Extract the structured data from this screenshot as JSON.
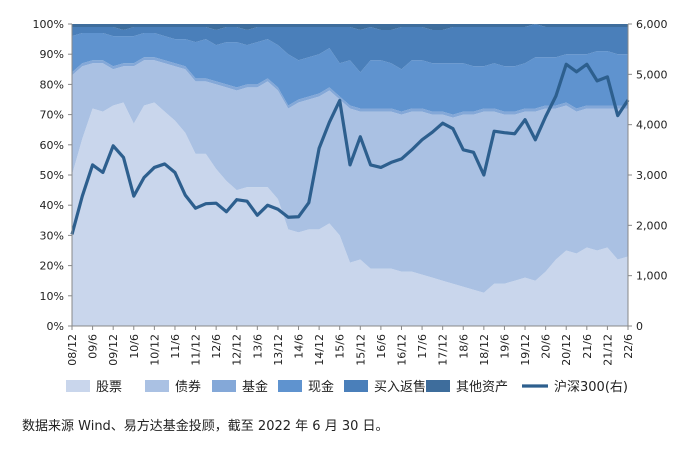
{
  "source_note": "数据来源 Wind、易方达基金投顾，截至 2022 年 6 月 30 日。",
  "chart_data": {
    "type": "area",
    "stacked_percent": true,
    "legend_position": "bottom",
    "grid": false,
    "y_left": {
      "min": 0,
      "max": 100,
      "step": 10,
      "unit": "%"
    },
    "y_right": {
      "min": 0,
      "max": 6000,
      "step": 1000
    },
    "x_tick_labels": [
      "08/12",
      "09/6",
      "09/12",
      "10/6",
      "10/12",
      "11/6",
      "11/12",
      "12/6",
      "12/12",
      "13/6",
      "13/12",
      "14/6",
      "14/12",
      "15/6",
      "15/12",
      "16/6",
      "16/12",
      "17/6",
      "17/12",
      "18/6",
      "18/12",
      "19/6",
      "19/12",
      "20/6",
      "20/12",
      "21/6",
      "21/12",
      "22/6"
    ],
    "x_tick_indices": [
      0,
      2,
      4,
      6,
      8,
      10,
      12,
      14,
      16,
      18,
      20,
      22,
      24,
      26,
      28,
      30,
      32,
      34,
      36,
      38,
      40,
      42,
      44,
      46,
      48,
      50,
      52,
      54
    ],
    "x": [
      "08/12",
      "09/3",
      "09/6",
      "09/9",
      "09/12",
      "10/3",
      "10/6",
      "10/9",
      "10/12",
      "11/3",
      "11/6",
      "11/9",
      "11/12",
      "12/3",
      "12/6",
      "12/9",
      "12/12",
      "13/3",
      "13/6",
      "13/9",
      "13/12",
      "14/3",
      "14/6",
      "14/9",
      "14/12",
      "15/3",
      "15/6",
      "15/9",
      "15/12",
      "16/3",
      "16/6",
      "16/9",
      "16/12",
      "17/3",
      "17/6",
      "17/9",
      "17/12",
      "18/3",
      "18/6",
      "18/9",
      "18/12",
      "19/3",
      "19/6",
      "19/9",
      "19/12",
      "20/3",
      "20/6",
      "20/9",
      "20/12",
      "21/3",
      "21/6",
      "21/9",
      "21/12",
      "22/3",
      "22/6"
    ],
    "series": [
      {
        "name": "股票",
        "color": "#c9d6ec",
        "values": [
          50,
          62,
          72,
          71,
          73,
          74,
          67,
          73,
          74,
          71,
          68,
          64,
          57,
          57,
          52,
          48,
          45,
          46,
          46,
          46,
          42,
          32,
          31,
          32,
          32,
          34,
          30,
          21,
          22,
          19,
          19,
          19,
          18,
          18,
          17,
          16,
          15,
          14,
          13,
          12,
          11,
          14,
          14,
          15,
          16,
          15,
          18,
          22,
          25,
          24,
          26,
          25,
          26,
          22,
          23
        ]
      },
      {
        "name": "债券",
        "color": "#aac1e3",
        "values": [
          33,
          24,
          15,
          16,
          12,
          12,
          19,
          15,
          14,
          16,
          18,
          21,
          24,
          24,
          28,
          31,
          33,
          33,
          33,
          35,
          36,
          40,
          43,
          43,
          44,
          44,
          45,
          51,
          49,
          52,
          52,
          52,
          52,
          53,
          54,
          54,
          55,
          55,
          57,
          58,
          60,
          57,
          56,
          55,
          55,
          56,
          54,
          50,
          48,
          47,
          46,
          47,
          46,
          50,
          49
        ]
      },
      {
        "name": "基金",
        "color": "#84a8d8",
        "values": [
          1,
          1,
          1,
          1,
          1,
          1,
          1,
          1,
          1,
          1,
          1,
          1,
          1,
          1,
          1,
          1,
          1,
          1,
          1,
          1,
          1,
          1,
          1,
          1,
          1,
          1,
          1,
          1,
          1,
          1,
          1,
          1,
          1,
          1,
          1,
          1,
          1,
          1,
          1,
          1,
          1,
          1,
          1,
          1,
          1,
          1,
          1,
          1,
          1,
          1,
          1,
          1,
          1,
          1,
          1
        ]
      },
      {
        "name": "现金",
        "color": "#5f93cf",
        "values": [
          12,
          10,
          9,
          9,
          10,
          9,
          9,
          8,
          8,
          8,
          8,
          9,
          12,
          13,
          12,
          14,
          15,
          13,
          14,
          13,
          14,
          17,
          13,
          13,
          13,
          13,
          11,
          15,
          12,
          16,
          16,
          15,
          14,
          16,
          16,
          16,
          16,
          17,
          16,
          15,
          14,
          15,
          15,
          15,
          15,
          17,
          16,
          16,
          16,
          18,
          17,
          18,
          18,
          17,
          17
        ]
      },
      {
        "name": "买入返售",
        "color": "#4a7fba",
        "values": [
          3,
          2,
          2,
          2,
          3,
          2,
          3,
          2,
          2,
          3,
          4,
          4,
          5,
          4,
          5,
          5,
          5,
          5,
          5,
          4,
          6,
          9,
          11,
          10,
          9,
          7,
          12,
          11,
          14,
          11,
          10,
          11,
          14,
          11,
          11,
          11,
          11,
          12,
          12,
          13,
          13,
          12,
          13,
          13,
          12,
          11,
          10,
          10,
          9,
          9,
          9,
          8,
          8,
          9,
          9
        ]
      },
      {
        "name": "其他资产",
        "color": "#3e6d9c",
        "values": [
          1,
          1,
          1,
          1,
          1,
          2,
          1,
          1,
          1,
          1,
          1,
          1,
          1,
          1,
          2,
          1,
          1,
          2,
          1,
          1,
          1,
          1,
          1,
          1,
          1,
          1,
          1,
          1,
          2,
          1,
          2,
          2,
          1,
          1,
          1,
          2,
          2,
          1,
          1,
          1,
          1,
          1,
          1,
          1,
          1,
          0,
          1,
          1,
          1,
          1,
          1,
          1,
          1,
          1,
          1
        ]
      }
    ],
    "line": {
      "name": "沪深300(右)",
      "color": "#2d5f8e",
      "axis": "right",
      "values": [
        1820,
        2580,
        3200,
        3050,
        3580,
        3350,
        2580,
        2950,
        3150,
        3220,
        3050,
        2600,
        2340,
        2430,
        2440,
        2270,
        2510,
        2480,
        2200,
        2400,
        2320,
        2160,
        2170,
        2450,
        3530,
        4050,
        4480,
        3200,
        3760,
        3200,
        3150,
        3250,
        3320,
        3500,
        3700,
        3850,
        4030,
        3920,
        3500,
        3450,
        3000,
        3870,
        3840,
        3820,
        4100,
        3700,
        4160,
        4570,
        5200,
        5050,
        5200,
        4870,
        4950,
        4180,
        4490
      ]
    }
  }
}
